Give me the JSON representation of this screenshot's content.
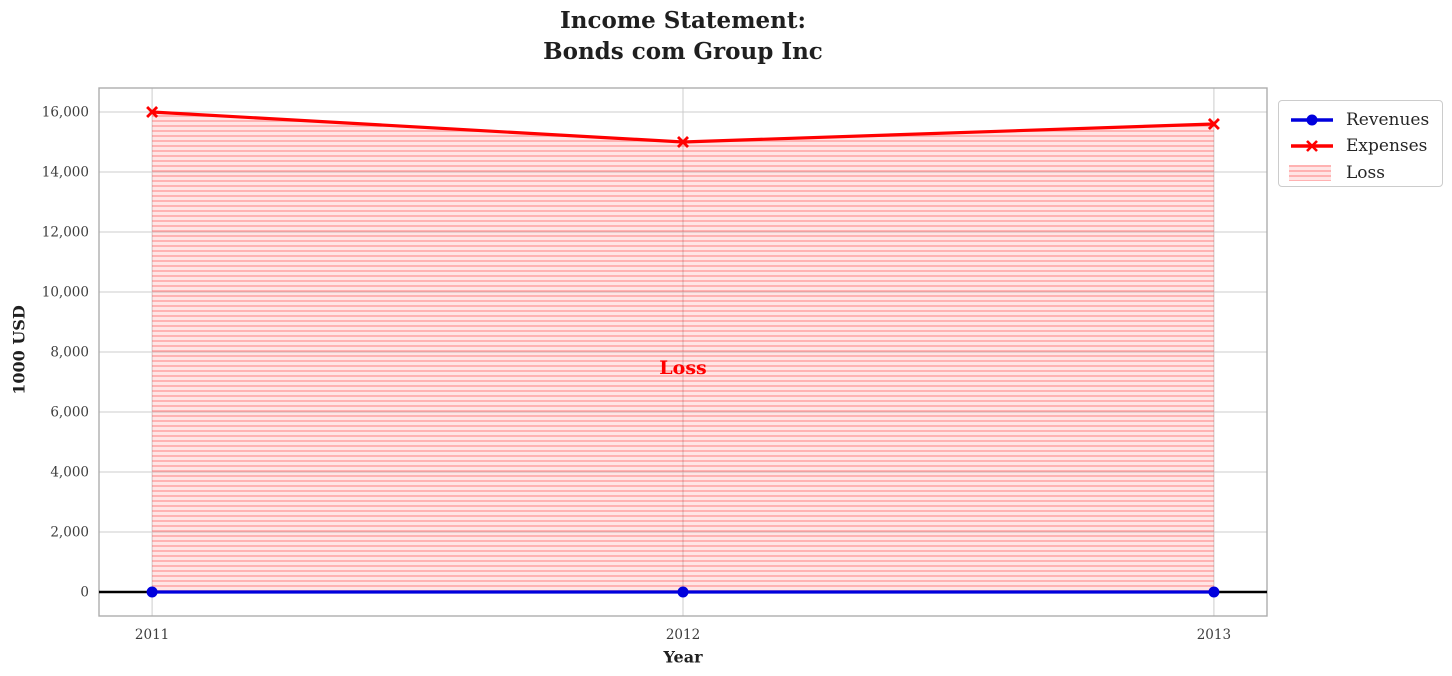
{
  "chart_data": {
    "type": "line",
    "title": "Income Statement:\nBonds com Group Inc",
    "xlabel": "Year",
    "ylabel": "1000 USD",
    "x": [
      2011,
      2012,
      2013
    ],
    "x_tick_labels": [
      "2011",
      "2012",
      "2013"
    ],
    "y_ticks": [
      0,
      2000,
      4000,
      6000,
      8000,
      10000,
      12000,
      14000,
      16000
    ],
    "y_tick_labels": [
      "0",
      "2,000",
      "4,000",
      "6,000",
      "8,000",
      "10,000",
      "12,000",
      "14,000",
      "16,000"
    ],
    "xlim": [
      2010.9,
      2013.1
    ],
    "ylim": [
      -800,
      16800
    ],
    "grid": true,
    "zero_line": true,
    "zero_line_color": "#000000",
    "series": [
      {
        "name": "Revenues",
        "values": [
          0,
          0,
          0
        ],
        "color": "#0000dd",
        "marker": "circle"
      },
      {
        "name": "Expenses",
        "values": [
          16000,
          15000,
          15600
        ],
        "color": "#ff0000",
        "marker": "x"
      }
    ],
    "loss_area": {
      "label": "Loss",
      "between": [
        "Revenues",
        "Expenses"
      ],
      "hatch": "horizontal",
      "fill_color": "rgba(255,0,0,0.10)",
      "hatch_color": "rgba(255,0,0,0.22)"
    },
    "annotation": {
      "text": "Loss",
      "x": 2012,
      "y": 7500,
      "color": "#ff0000"
    },
    "legend_position": "upper-right-outside"
  }
}
